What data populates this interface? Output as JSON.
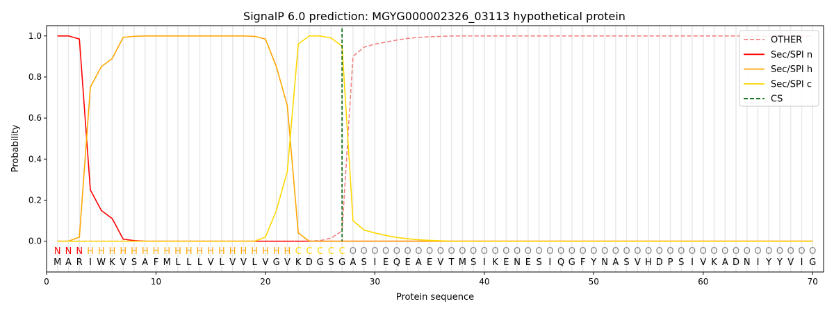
{
  "chart_data": {
    "type": "line",
    "title": "SignalP 6.0 prediction: MGYG000002326_03113 hypothetical protein",
    "xlabel": "Protein sequence",
    "ylabel": "Probability",
    "xlim": [
      0,
      71
    ],
    "ylim": [
      -0.15,
      1.05
    ],
    "xticks": [
      0,
      10,
      20,
      30,
      40,
      50,
      60,
      70
    ],
    "yticks": [
      0.0,
      0.2,
      0.4,
      0.6,
      0.8,
      1.0
    ],
    "ytick_labels": [
      "0.0",
      "0.2",
      "0.4",
      "0.6",
      "0.8",
      "1.0"
    ],
    "legend_position": "top-right",
    "sequence": "MARIWKVSAFMLLLVLVVLVGVKDGSGASIEQEAEVTMSIKENESIQGFYNASVHDPSIVKADNIYYVIG",
    "labels": "NNNHHHHHHHHHHHHHHHHHHHCCCCCOOOOOOOOOOOOOOOOOOOOOOOOOOOOOOOOOOOOOOOOOOO",
    "label_colors": {
      "N": "#ff0000",
      "H": "#ffa500",
      "C": "#ffd700",
      "O": "#808080"
    },
    "cs_position": 27,
    "series": [
      {
        "name": "OTHER",
        "color": "#f08080",
        "dash": true,
        "values": [
          0,
          0,
          0,
          0,
          0,
          0,
          0,
          0,
          0,
          0,
          0,
          0,
          0,
          0,
          0,
          0,
          0,
          0,
          0,
          0,
          0,
          0,
          0,
          0,
          0.003,
          0.015,
          0.05,
          0.9,
          0.945,
          0.96,
          0.97,
          0.98,
          0.988,
          0.993,
          0.996,
          0.998,
          1,
          1,
          1,
          1,
          1,
          1,
          1,
          1,
          1,
          1,
          1,
          1,
          1,
          1,
          1,
          1,
          1,
          1,
          1,
          1,
          1,
          1,
          1,
          1,
          1,
          1,
          1,
          1,
          1,
          1,
          1,
          1,
          1,
          1
        ]
      },
      {
        "name": "Sec/SPI n",
        "color": "#ff0000",
        "dash": false,
        "values": [
          1.0,
          1.0,
          0.985,
          0.25,
          0.15,
          0.11,
          0.01,
          0.003,
          0,
          0,
          0,
          0,
          0,
          0,
          0,
          0,
          0,
          0,
          0,
          0,
          0,
          0,
          0,
          0,
          0,
          0,
          0,
          0,
          0,
          0,
          0,
          0,
          0,
          0,
          0,
          0,
          0,
          0,
          0,
          0,
          0,
          0,
          0,
          0,
          0,
          0,
          0,
          0,
          0,
          0,
          0,
          0,
          0,
          0,
          0,
          0,
          0,
          0,
          0,
          0,
          0,
          0,
          0,
          0,
          0,
          0,
          0,
          0,
          0,
          0
        ]
      },
      {
        "name": "Sec/SPI h",
        "color": "#ffa500",
        "dash": false,
        "values": [
          0,
          0,
          0.02,
          0.75,
          0.85,
          0.89,
          0.993,
          0.998,
          1,
          1,
          1,
          1,
          1,
          1,
          1,
          1,
          1,
          1,
          0.998,
          0.985,
          0.85,
          0.66,
          0.04,
          0.0,
          0,
          0,
          0,
          0,
          0,
          0,
          0,
          0,
          0,
          0,
          0,
          0,
          0,
          0,
          0,
          0,
          0,
          0,
          0,
          0,
          0,
          0,
          0,
          0,
          0,
          0,
          0,
          0,
          0,
          0,
          0,
          0,
          0,
          0,
          0,
          0,
          0,
          0,
          0,
          0,
          0,
          0,
          0,
          0,
          0,
          0
        ]
      },
      {
        "name": "Sec/SPI c",
        "color": "#ffd700",
        "dash": false,
        "values": [
          0,
          0,
          0,
          0,
          0,
          0,
          0,
          0,
          0,
          0,
          0,
          0,
          0,
          0,
          0,
          0,
          0,
          0,
          0,
          0.02,
          0.15,
          0.34,
          0.96,
          1.0,
          1.0,
          0.99,
          0.95,
          0.1,
          0.055,
          0.04,
          0.028,
          0.018,
          0.012,
          0.007,
          0.004,
          0.002,
          0,
          0,
          0,
          0,
          0,
          0,
          0,
          0,
          0,
          0,
          0,
          0,
          0,
          0,
          0,
          0,
          0,
          0,
          0,
          0,
          0,
          0,
          0,
          0,
          0,
          0,
          0,
          0,
          0,
          0,
          0,
          0,
          0,
          0
        ]
      }
    ],
    "cs_legend": "CS"
  }
}
